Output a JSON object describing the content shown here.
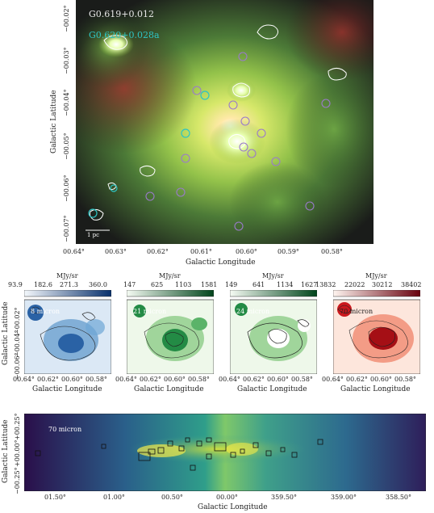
{
  "top_panel": {
    "source_label": "G0.619+0.012",
    "source_label_2": "G0.620+0.028a",
    "x_axis_label": "Galactic Longitude",
    "y_axis_label": "Galactic Latitude",
    "x_ticks": [
      "00.64°",
      "00.63°",
      "00.62°",
      "00.61°",
      "00.60°",
      "00.59°",
      "00.58°"
    ],
    "y_ticks": [
      "−00.02°",
      "−00.03°",
      "−00.04°",
      "−00.05°",
      "−00.06°",
      "−00.07°"
    ],
    "scale_bar_label": "1 pc"
  },
  "small_panels": {
    "unit_label": "MJy/sr",
    "x_axis_label": "Galactic Longitude",
    "y_axis_label": "Galactic Latitude",
    "x_ticks": [
      "00.64°",
      "00.62°",
      "00.60°",
      "00.58°"
    ],
    "y_ticks": [
      "−00.02°",
      "−00.04°",
      "−00.06°"
    ],
    "panels": [
      {
        "label": "8 micron",
        "cbar_ticks": [
          "93.9",
          "182.6",
          "271.3",
          "360.0"
        ],
        "color_low": "#f4f8fc",
        "color_high": "#08306b"
      },
      {
        "label": "21 micron",
        "cbar_ticks": [
          "147",
          "625",
          "1103",
          "1581"
        ],
        "color_low": "#f5fbf3",
        "color_high": "#00441b"
      },
      {
        "label": "24 micron",
        "cbar_ticks": [
          "149",
          "641",
          "1134",
          "1627"
        ],
        "color_low": "#f5fbf3",
        "color_high": "#00441b"
      },
      {
        "label": "70 micron",
        "cbar_ticks": [
          "13832",
          "22022",
          "30212",
          "38402"
        ],
        "color_low": "#fff5f0",
        "color_high": "#67000d"
      }
    ]
  },
  "bottom_panel": {
    "label": "70 micron",
    "x_axis_label": "Galactic Longitude",
    "y_axis_label": "Galactic Latitude",
    "x_ticks": [
      "01.50°",
      "01.00°",
      "00.50°",
      "00.00°",
      "359.50°",
      "359.00°",
      "358.50°"
    ],
    "y_ticks": [
      "+00.25°",
      "+00.00°",
      "−00.25°"
    ]
  }
}
